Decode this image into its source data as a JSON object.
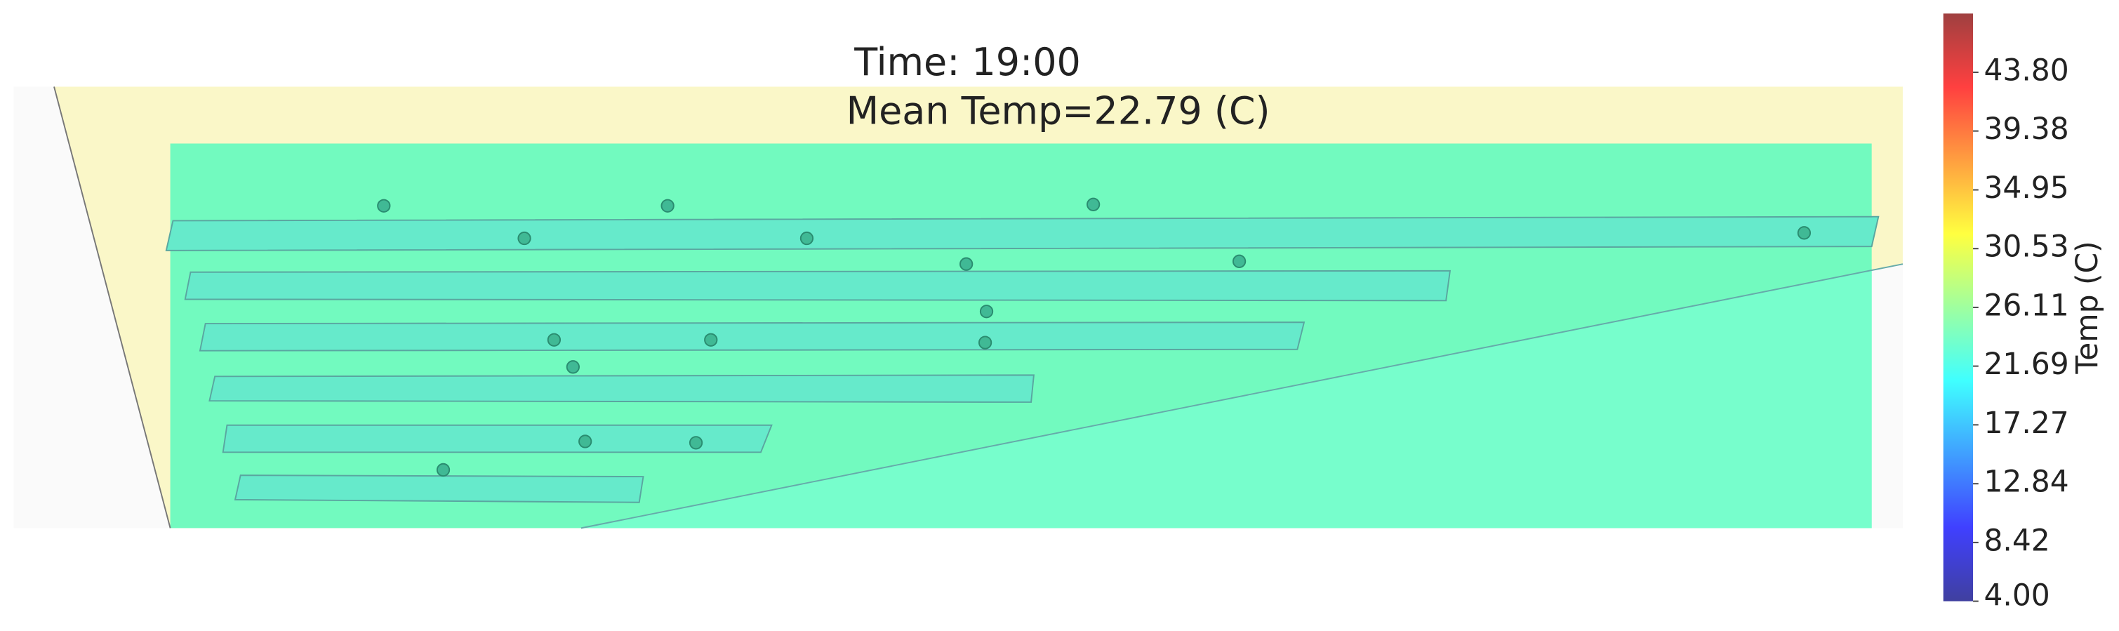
{
  "chart_data": {
    "type": "temperature-map",
    "title": "Time: 19:00",
    "subtitle": "Mean Temp=22.79 (C)",
    "colorbar_label": "Temp (C)",
    "colormap": "jet",
    "clim": [
      4,
      48.22
    ],
    "cticks": [
      {
        "value": 4,
        "label": "4.00"
      },
      {
        "value": 8.42,
        "label": "8.42"
      },
      {
        "value": 12.84,
        "label": "12.84"
      },
      {
        "value": 17.27,
        "label": "17.27"
      },
      {
        "value": 21.69,
        "label": "21.69"
      },
      {
        "value": 26.11,
        "label": "26.11"
      },
      {
        "value": 30.53,
        "label": "30.53"
      },
      {
        "value": 34.95,
        "label": "34.95"
      },
      {
        "value": 39.38,
        "label": "39.38"
      },
      {
        "value": 43.8,
        "label": "43.80"
      }
    ]
  }
}
